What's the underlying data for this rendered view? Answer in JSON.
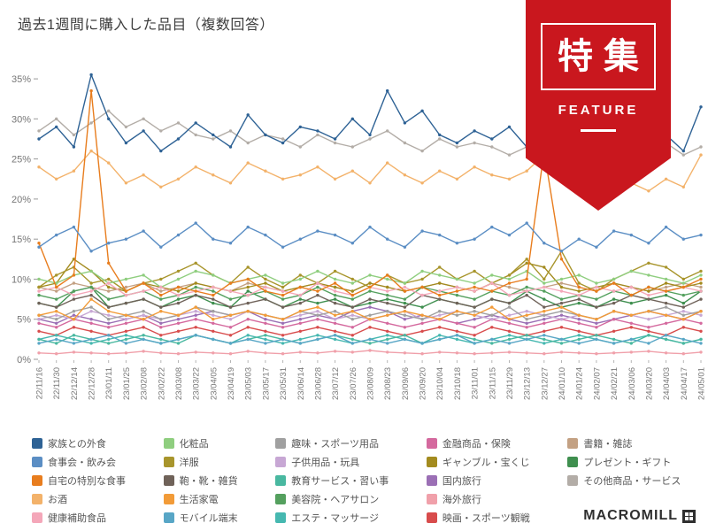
{
  "page": {
    "title": "過去1週間に購入した品目（複数回答）"
  },
  "ribbon": {
    "title": "特集",
    "subtitle": "FEATURE",
    "color": "#c9171e"
  },
  "logo": {
    "text": "MACROMILL"
  },
  "chart_data": {
    "type": "line",
    "title": "過去1週間に購入した品目（複数回答）",
    "xlabel": "",
    "ylabel": "",
    "ylim": [
      0,
      36
    ],
    "yticks": [
      0,
      5,
      10,
      15,
      20,
      25,
      30,
      35
    ],
    "ytick_suffix": "%",
    "grid": false,
    "legend_position": "bottom",
    "categories": [
      "22/11/16",
      "22/11/30",
      "22/12/14",
      "22/12/28",
      "23/01/11",
      "23/01/25",
      "23/02/08",
      "23/02/22",
      "23/03/08",
      "23/03/22",
      "23/04/05",
      "23/04/19",
      "23/05/03",
      "23/05/17",
      "23/05/31",
      "23/06/14",
      "23/06/28",
      "23/07/12",
      "23/07/26",
      "23/08/09",
      "23/08/23",
      "23/09/06",
      "23/09/20",
      "23/10/04",
      "23/10/18",
      "23/11/01",
      "23/11/15",
      "23/11/29",
      "23/12/13",
      "23/12/27",
      "24/01/10",
      "24/01/24",
      "24/02/07",
      "24/02/21",
      "24/03/06",
      "24/03/20",
      "24/04/03",
      "24/04/17",
      "24/05/01"
    ],
    "series": [
      {
        "name": "家族との外食",
        "color": "#2e6295",
        "values": [
          27.5,
          29.0,
          26.5,
          35.5,
          30.0,
          27.0,
          28.5,
          26.0,
          27.5,
          29.5,
          28.0,
          26.5,
          30.5,
          28.0,
          27.0,
          29.0,
          28.5,
          27.5,
          30.0,
          28.0,
          33.5,
          29.5,
          31.0,
          28.0,
          27.0,
          28.5,
          27.5,
          29.0,
          26.5,
          28.0,
          30.5,
          27.0,
          26.0,
          27.5,
          25.5,
          26.5,
          28.0,
          26.0,
          31.5
        ]
      },
      {
        "name": "食事会・飲み会",
        "color": "#5b8ec4",
        "values": [
          14.0,
          15.5,
          16.5,
          13.5,
          14.5,
          15.0,
          16.0,
          14.0,
          15.5,
          17.0,
          15.0,
          14.5,
          16.5,
          15.5,
          14.0,
          15.0,
          16.0,
          15.5,
          14.5,
          16.5,
          15.0,
          14.0,
          16.0,
          15.5,
          14.5,
          15.0,
          16.5,
          15.5,
          17.0,
          14.5,
          13.5,
          15.0,
          14.0,
          16.0,
          15.5,
          14.5,
          16.5,
          15.0,
          15.5
        ]
      },
      {
        "name": "自宅の特別な食事",
        "color": "#e87d1e",
        "values": [
          14.5,
          9.0,
          10.5,
          33.5,
          12.0,
          8.5,
          9.5,
          8.0,
          9.0,
          8.5,
          8.0,
          9.5,
          10.0,
          8.5,
          8.0,
          9.0,
          8.5,
          9.5,
          8.0,
          9.0,
          10.5,
          8.5,
          9.0,
          8.0,
          8.5,
          9.0,
          8.5,
          9.5,
          10.0,
          26.0,
          12.5,
          9.0,
          8.5,
          9.5,
          8.0,
          9.0,
          8.5,
          9.0,
          10.0
        ]
      },
      {
        "name": "お酒",
        "color": "#f3b26a",
        "values": [
          24.0,
          22.5,
          23.5,
          26.0,
          24.5,
          22.0,
          23.0,
          21.5,
          22.5,
          24.0,
          23.0,
          22.0,
          24.5,
          23.5,
          22.5,
          23.0,
          24.0,
          22.5,
          23.5,
          22.0,
          24.5,
          23.0,
          22.0,
          23.5,
          22.5,
          24.0,
          23.0,
          22.5,
          23.5,
          25.5,
          24.0,
          22.0,
          21.5,
          23.0,
          22.0,
          21.0,
          22.5,
          21.5,
          25.5
        ]
      },
      {
        "name": "健康補助食品",
        "color": "#f4a7b9",
        "values": [
          8.5,
          9.0,
          8.0,
          8.5,
          9.5,
          8.0,
          8.5,
          9.0,
          8.0,
          8.5,
          9.0,
          8.5,
          8.0,
          9.0,
          8.5,
          8.0,
          9.5,
          8.5,
          8.0,
          9.0,
          8.5,
          9.0,
          8.0,
          8.5,
          9.0,
          8.5,
          9.5,
          8.0,
          8.5,
          9.0,
          8.5,
          8.0,
          9.0,
          8.5,
          9.0,
          8.0,
          8.5,
          9.0,
          8.5
        ]
      },
      {
        "name": "化粧品",
        "color": "#8fce7f",
        "values": [
          10.0,
          9.5,
          10.5,
          11.0,
          9.5,
          10.0,
          10.5,
          9.0,
          10.0,
          11.0,
          10.5,
          9.5,
          10.0,
          10.5,
          9.5,
          10.0,
          11.0,
          10.0,
          9.5,
          10.5,
          10.0,
          9.5,
          11.0,
          10.5,
          10.0,
          9.5,
          10.5,
          10.0,
          11.0,
          9.5,
          10.0,
          10.5,
          9.5,
          10.0,
          11.0,
          10.5,
          10.0,
          9.5,
          10.5
        ]
      },
      {
        "name": "洋服",
        "color": "#a8952c",
        "values": [
          9.0,
          10.5,
          11.5,
          9.5,
          10.0,
          8.5,
          9.5,
          10.0,
          11.0,
          12.0,
          10.5,
          9.5,
          11.5,
          10.0,
          9.0,
          10.5,
          9.5,
          11.0,
          10.0,
          9.0,
          10.5,
          9.5,
          10.0,
          11.5,
          10.0,
          11.0,
          9.5,
          10.5,
          12.5,
          10.0,
          13.5,
          9.5,
          8.5,
          10.0,
          11.0,
          12.0,
          11.5,
          10.0,
          11.0
        ]
      },
      {
        "name": "鞄・靴・雑貨",
        "color": "#6f6259",
        "values": [
          7.0,
          6.5,
          7.5,
          8.0,
          6.5,
          7.0,
          7.5,
          6.5,
          7.0,
          8.0,
          7.5,
          6.5,
          7.0,
          7.5,
          6.5,
          7.0,
          8.0,
          7.0,
          6.5,
          7.5,
          7.0,
          6.5,
          8.0,
          7.5,
          7.0,
          6.5,
          7.5,
          7.0,
          8.0,
          6.5,
          7.0,
          7.5,
          6.5,
          7.0,
          8.0,
          7.5,
          7.0,
          6.5,
          7.5
        ]
      },
      {
        "name": "生活家電",
        "color": "#f29b38",
        "values": [
          5.5,
          6.0,
          5.0,
          7.5,
          6.0,
          5.5,
          5.0,
          6.0,
          5.5,
          6.5,
          5.0,
          5.5,
          6.0,
          5.5,
          5.0,
          6.0,
          6.5,
          5.5,
          6.0,
          5.0,
          5.5,
          6.0,
          5.5,
          5.0,
          6.0,
          5.5,
          6.5,
          5.0,
          5.5,
          6.0,
          6.5,
          5.5,
          5.0,
          6.0,
          5.5,
          6.0,
          5.5,
          5.0,
          6.0
        ]
      },
      {
        "name": "モバイル端末",
        "color": "#58a6c6",
        "values": [
          2.0,
          2.5,
          2.0,
          2.5,
          3.0,
          2.0,
          2.5,
          2.0,
          2.5,
          3.0,
          2.5,
          2.0,
          2.5,
          2.0,
          2.5,
          2.0,
          2.5,
          3.0,
          2.0,
          2.5,
          2.0,
          2.5,
          2.0,
          2.5,
          3.0,
          2.0,
          2.5,
          2.0,
          2.5,
          3.0,
          2.5,
          2.0,
          2.5,
          2.0,
          2.5,
          2.0,
          3.0,
          2.5,
          2.0
        ]
      },
      {
        "name": "趣味・スポーツ用品",
        "color": "#a0a0a0",
        "values": [
          5.5,
          5.0,
          6.0,
          6.5,
          5.0,
          5.5,
          6.0,
          5.0,
          5.5,
          6.5,
          6.0,
          5.5,
          6.0,
          5.5,
          5.0,
          6.0,
          5.5,
          6.0,
          5.0,
          5.5,
          6.0,
          5.5,
          5.0,
          6.0,
          5.5,
          6.0,
          5.5,
          6.5,
          5.0,
          5.5,
          6.0,
          5.5,
          5.0,
          6.0,
          5.5,
          6.0,
          6.5,
          5.5,
          6.0
        ]
      },
      {
        "name": "子供用品・玩具",
        "color": "#c7a7d4",
        "values": [
          5.0,
          5.5,
          5.0,
          6.0,
          5.5,
          5.0,
          5.5,
          5.0,
          5.5,
          6.0,
          5.5,
          5.0,
          6.0,
          5.5,
          5.0,
          5.5,
          6.0,
          5.0,
          5.5,
          5.0,
          5.5,
          6.0,
          5.0,
          5.5,
          6.0,
          5.5,
          5.0,
          5.5,
          6.0,
          5.5,
          5.0,
          5.5,
          5.0,
          6.0,
          5.5,
          5.0,
          5.5,
          6.0,
          5.5
        ]
      },
      {
        "name": "教育サービス・習い事",
        "color": "#49b8a0",
        "values": [
          2.5,
          2.0,
          3.0,
          2.5,
          2.0,
          2.5,
          3.0,
          2.5,
          2.0,
          3.0,
          2.5,
          2.0,
          2.5,
          3.0,
          2.5,
          2.0,
          2.5,
          3.0,
          2.5,
          2.0,
          2.5,
          3.0,
          2.0,
          2.5,
          3.0,
          2.5,
          2.0,
          2.5,
          3.0,
          2.5,
          2.0,
          2.5,
          3.0,
          2.5,
          2.0,
          3.0,
          2.5,
          2.0,
          2.5
        ]
      },
      {
        "name": "美容院・ヘアサロン",
        "color": "#54a05e",
        "values": [
          8.0,
          7.5,
          8.5,
          9.0,
          7.5,
          8.0,
          8.5,
          7.5,
          8.0,
          9.0,
          8.5,
          7.5,
          8.0,
          8.5,
          7.5,
          8.0,
          9.0,
          8.0,
          7.5,
          8.5,
          8.0,
          7.5,
          9.0,
          8.5,
          8.0,
          7.5,
          8.5,
          8.0,
          9.0,
          8.5,
          7.5,
          8.0,
          7.5,
          8.5,
          8.0,
          9.0,
          8.5,
          8.0,
          8.5
        ]
      },
      {
        "name": "エステ・マッサージ",
        "color": "#46b8b0",
        "values": [
          2.5,
          3.0,
          2.5,
          2.0,
          2.5,
          3.0,
          2.5,
          2.0,
          2.5,
          3.0,
          2.5,
          2.0,
          3.0,
          2.5,
          2.0,
          2.5,
          3.0,
          2.5,
          2.0,
          2.5,
          3.0,
          2.5,
          2.0,
          3.0,
          2.5,
          2.0,
          2.5,
          3.0,
          2.5,
          2.0,
          2.5,
          3.0,
          2.5,
          2.0,
          2.5,
          3.0,
          2.5,
          2.0,
          2.5
        ]
      },
      {
        "name": "金融商品・保険",
        "color": "#d4699e",
        "values": [
          4.5,
          4.0,
          5.0,
          4.5,
          4.0,
          4.5,
          5.0,
          4.0,
          4.5,
          5.0,
          4.5,
          4.0,
          5.0,
          4.5,
          4.0,
          4.5,
          5.0,
          4.5,
          4.0,
          5.0,
          4.5,
          4.0,
          4.5,
          5.0,
          4.5,
          4.0,
          5.0,
          4.5,
          4.0,
          4.5,
          5.0,
          4.5,
          4.0,
          5.0,
          4.5,
          4.0,
          4.5,
          5.0,
          4.5
        ]
      },
      {
        "name": "ギャンブル・宝くじ",
        "color": "#a38b1f",
        "values": [
          9.0,
          9.5,
          12.5,
          11.0,
          9.0,
          8.5,
          9.5,
          9.0,
          8.5,
          9.5,
          9.0,
          8.5,
          9.0,
          9.5,
          8.5,
          9.0,
          9.5,
          9.0,
          8.5,
          9.5,
          9.0,
          8.5,
          9.0,
          9.5,
          9.0,
          8.5,
          9.5,
          10.5,
          12.0,
          11.5,
          9.0,
          8.5,
          9.0,
          9.5,
          9.0,
          8.5,
          9.5,
          9.0,
          9.5
        ]
      },
      {
        "name": "国内旅行",
        "color": "#9b6fb5",
        "values": [
          5.0,
          4.5,
          5.5,
          5.0,
          4.5,
          5.0,
          5.5,
          4.5,
          5.0,
          5.5,
          6.0,
          5.5,
          6.0,
          5.0,
          4.5,
          5.0,
          5.5,
          5.0,
          6.0,
          6.5,
          6.0,
          5.0,
          5.5,
          5.0,
          4.5,
          5.0,
          5.5,
          5.0,
          4.5,
          5.0,
          5.5,
          5.0,
          4.5,
          5.0,
          5.5,
          6.0,
          5.5,
          5.0,
          6.0
        ]
      },
      {
        "name": "海外旅行",
        "color": "#f0a0aa",
        "values": [
          0.8,
          0.7,
          0.9,
          0.8,
          0.7,
          0.8,
          1.0,
          0.8,
          0.7,
          0.9,
          0.8,
          0.7,
          1.0,
          0.8,
          0.7,
          0.9,
          0.8,
          1.0,
          0.9,
          1.1,
          0.9,
          0.8,
          0.7,
          0.9,
          0.8,
          0.7,
          0.8,
          0.9,
          0.8,
          0.7,
          0.9,
          0.8,
          0.7,
          0.8,
          0.9,
          1.0,
          0.8,
          0.7,
          0.9
        ]
      },
      {
        "name": "映画・スポーツ観戦",
        "color": "#d84c4c",
        "values": [
          3.5,
          3.0,
          4.0,
          3.5,
          3.0,
          3.5,
          4.0,
          3.0,
          3.5,
          4.0,
          3.5,
          3.0,
          4.0,
          3.5,
          3.0,
          3.5,
          4.0,
          3.5,
          3.0,
          4.0,
          3.5,
          3.0,
          3.5,
          4.0,
          3.5,
          3.0,
          4.0,
          3.5,
          3.0,
          3.5,
          4.0,
          3.5,
          3.0,
          3.5,
          4.0,
          3.5,
          3.0,
          4.0,
          3.5
        ]
      },
      {
        "name": "書籍・雑誌",
        "color": "#c3a183",
        "values": [
          9.0,
          8.5,
          9.5,
          9.0,
          8.5,
          9.0,
          9.5,
          8.5,
          9.0,
          9.5,
          9.0,
          8.5,
          9.5,
          9.0,
          8.5,
          9.0,
          9.5,
          9.0,
          8.5,
          9.5,
          9.0,
          8.5,
          9.0,
          9.5,
          9.0,
          8.5,
          9.5,
          9.0,
          8.5,
          9.0,
          9.5,
          9.0,
          8.5,
          9.5,
          9.0,
          8.5,
          9.0,
          9.5,
          9.0
        ]
      },
      {
        "name": "プレゼント・ギフト",
        "color": "#3f8f4f",
        "values": [
          7.0,
          6.5,
          8.5,
          9.0,
          6.5,
          7.0,
          7.5,
          6.5,
          7.5,
          8.0,
          7.0,
          6.5,
          8.5,
          7.5,
          6.5,
          7.5,
          7.0,
          7.5,
          6.5,
          7.0,
          7.5,
          7.0,
          6.5,
          7.5,
          7.0,
          6.5,
          7.5,
          7.0,
          8.5,
          7.5,
          6.5,
          7.0,
          6.5,
          7.5,
          7.0,
          7.5,
          8.0,
          7.0,
          8.5
        ]
      },
      {
        "name": "その他商品・サービス",
        "color": "#b3ada7",
        "values": [
          28.5,
          30.0,
          28.0,
          29.5,
          31.0,
          29.0,
          30.0,
          28.5,
          29.5,
          28.0,
          27.5,
          28.5,
          27.0,
          28.0,
          27.5,
          26.5,
          28.0,
          27.0,
          26.5,
          27.5,
          28.5,
          27.0,
          26.0,
          27.5,
          26.5,
          27.0,
          26.5,
          25.5,
          26.5,
          27.0,
          25.5,
          26.0,
          25.0,
          26.5,
          25.5,
          26.0,
          27.0,
          25.5,
          26.5
        ]
      }
    ]
  }
}
